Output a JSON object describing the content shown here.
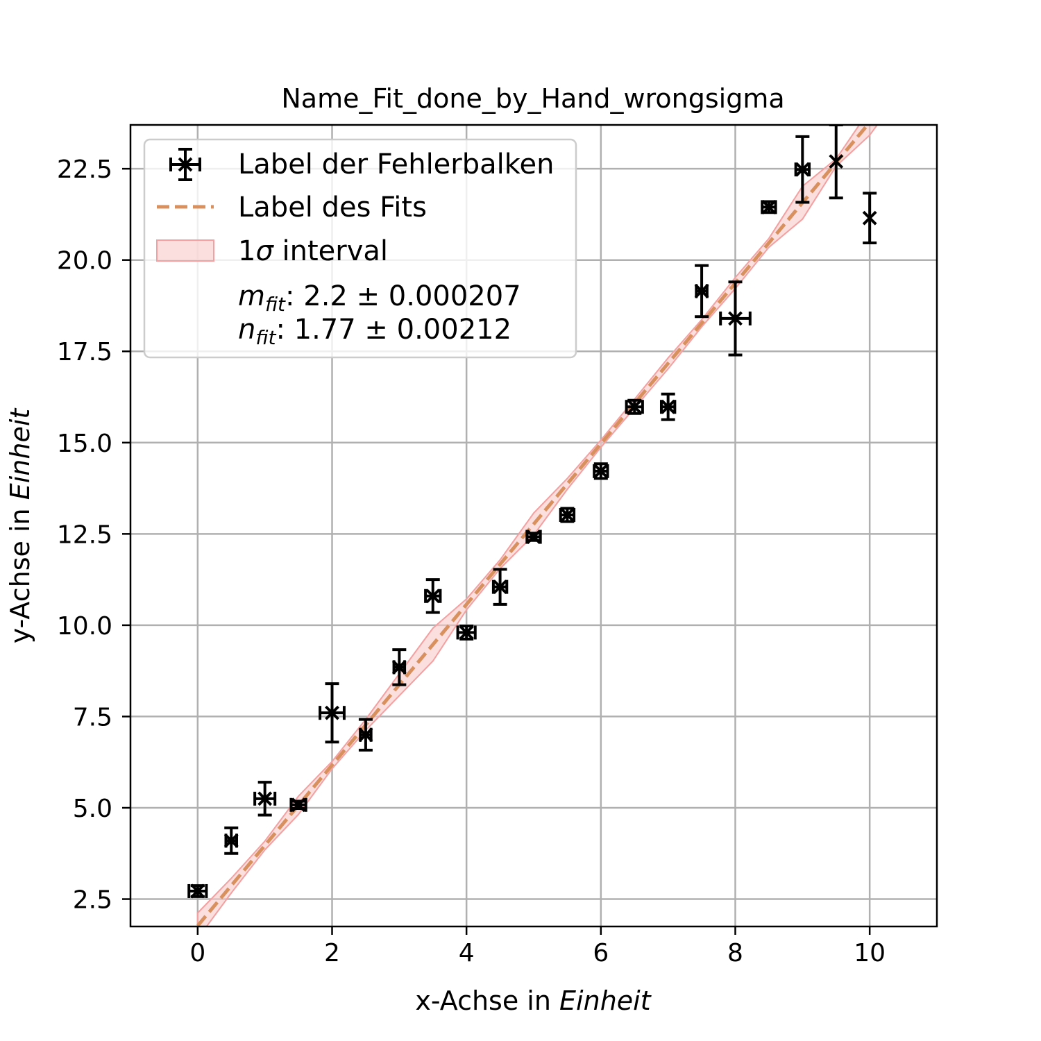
{
  "chart_data": {
    "type": "scatter",
    "title": "Name_Fit_done_by_Hand_wrongsigma",
    "xlabel": "x-Achse in",
    "xlabel_unit": "Einheit",
    "ylabel": "y-Achse in",
    "ylabel_unit": "Einheit",
    "xlim": [
      -1,
      11
    ],
    "ylim": [
      1.75,
      23.7
    ],
    "x_ticks": [
      0,
      2,
      4,
      6,
      8,
      10
    ],
    "x_tick_labels": [
      "0",
      "2",
      "4",
      "6",
      "8",
      "10"
    ],
    "y_ticks": [
      2.5,
      5.0,
      7.5,
      10.0,
      12.5,
      15.0,
      17.5,
      20.0,
      22.5
    ],
    "y_tick_labels": [
      "2.5",
      "5.0",
      "7.5",
      "10.0",
      "12.5",
      "15.0",
      "17.5",
      "20.0",
      "22.5"
    ],
    "grid": true,
    "legend_position": "upper-left",
    "legend": {
      "errorbar_label": "Label der Fehlerbalken",
      "fit_label": "Label des Fits",
      "band_label_prefix": "1",
      "band_label_sigma": "σ",
      "band_label_suffix": " interval",
      "m_symbol": "m",
      "m_sub": "fit",
      "m_text": ": 2.2 ± 0.000207",
      "n_symbol": "n",
      "n_sub": "fit",
      "n_text": ": 1.77 ± 0.00212"
    },
    "colors": {
      "points": "#000000",
      "fit_line": "#d8915e",
      "band_fill": "#f8c8c8",
      "band_edge": "#f4a0a0"
    },
    "fit": {
      "slope": 2.2,
      "intercept": 1.77
    },
    "band_halfwidth": [
      0.35,
      0.2,
      0.12,
      0.25,
      0.1,
      0.15,
      0.3,
      0.45,
      0.15,
      0.12,
      0.3,
      0.15,
      0.1,
      0.12,
      0.15,
      0.1,
      0.15,
      0.12,
      0.45,
      0.1,
      0.35,
      0.2
    ],
    "band_x": [
      0,
      0.5,
      1,
      1.5,
      2,
      2.5,
      3,
      3.5,
      4,
      4.5,
      5,
      5.5,
      6,
      6.5,
      7,
      7.5,
      8,
      8.5,
      9,
      9.5,
      10,
      10.5
    ],
    "series": [
      {
        "name": "Label der Fehlerbalken",
        "points": [
          {
            "x": 0.0,
            "y": 2.72,
            "xerr": 0.13,
            "yerr": 0.15
          },
          {
            "x": 0.5,
            "y": 4.1,
            "xerr": 0.08,
            "yerr": 0.35
          },
          {
            "x": 1.0,
            "y": 5.25,
            "xerr": 0.15,
            "yerr": 0.45
          },
          {
            "x": 1.5,
            "y": 5.08,
            "xerr": 0.11,
            "yerr": 0.1
          },
          {
            "x": 2.0,
            "y": 7.6,
            "xerr": 0.18,
            "yerr": 0.8
          },
          {
            "x": 2.5,
            "y": 7.0,
            "xerr": 0.08,
            "yerr": 0.42
          },
          {
            "x": 3.0,
            "y": 8.85,
            "xerr": 0.08,
            "yerr": 0.48
          },
          {
            "x": 3.5,
            "y": 10.8,
            "xerr": 0.11,
            "yerr": 0.45
          },
          {
            "x": 4.0,
            "y": 9.8,
            "xerr": 0.13,
            "yerr": 0.18
          },
          {
            "x": 4.5,
            "y": 11.05,
            "xerr": 0.1,
            "yerr": 0.48
          },
          {
            "x": 5.0,
            "y": 12.42,
            "xerr": 0.1,
            "yerr": 0.1
          },
          {
            "x": 5.5,
            "y": 13.02,
            "xerr": 0.1,
            "yerr": 0.18
          },
          {
            "x": 6.0,
            "y": 14.22,
            "xerr": 0.1,
            "yerr": 0.2
          },
          {
            "x": 6.5,
            "y": 15.98,
            "xerr": 0.12,
            "yerr": 0.18
          },
          {
            "x": 7.0,
            "y": 15.98,
            "xerr": 0.1,
            "yerr": 0.35
          },
          {
            "x": 7.5,
            "y": 19.15,
            "xerr": 0.08,
            "yerr": 0.7
          },
          {
            "x": 8.0,
            "y": 18.4,
            "xerr": 0.22,
            "yerr": 1.0
          },
          {
            "x": 8.5,
            "y": 21.45,
            "xerr": 0.1,
            "yerr": 0.15
          },
          {
            "x": 9.0,
            "y": 22.48,
            "xerr": 0.1,
            "yerr": 0.9
          },
          {
            "x": 9.5,
            "y": 22.7,
            "xerr": 0.0,
            "yerr": 1.0
          },
          {
            "x": 10.0,
            "y": 21.15,
            "xerr": 0.0,
            "yerr": 0.68
          }
        ]
      }
    ]
  }
}
